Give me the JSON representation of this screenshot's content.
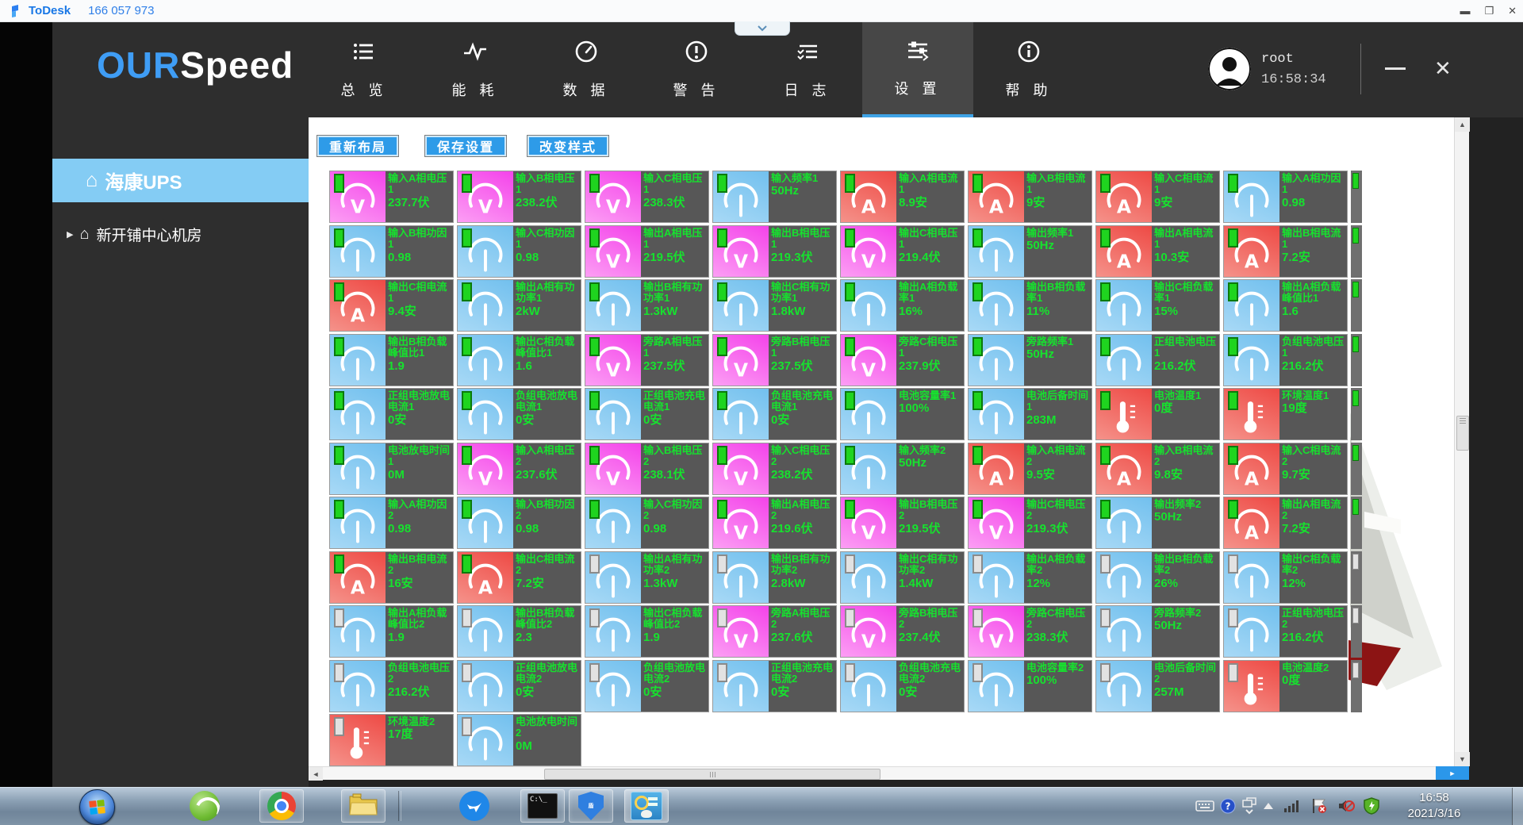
{
  "todesk": {
    "brand": "ToDesk",
    "session": "166 057 973",
    "window_controls": [
      "minimize",
      "maximize",
      "close"
    ]
  },
  "app": {
    "logo": {
      "primary": "OUR",
      "secondary": "Speed"
    },
    "nav": [
      {
        "label": "总 览",
        "icon": "overview-list"
      },
      {
        "label": "能 耗",
        "icon": "energy-pulse"
      },
      {
        "label": "数 据",
        "icon": "data-speedometer"
      },
      {
        "label": "警 告",
        "icon": "alert-warning"
      },
      {
        "label": "日 志",
        "icon": "log-lines"
      },
      {
        "label": "设 置",
        "icon": "settings-sliders",
        "active": true
      },
      {
        "label": "帮 助",
        "icon": "help-info"
      }
    ],
    "user": {
      "name": "root",
      "time": "16:58:34"
    },
    "sidebar": [
      {
        "label": "海康UPS",
        "icon": "home",
        "active": true
      },
      {
        "label": "新开铺中心机房",
        "icon": "home",
        "prefix_arrow": true,
        "active": false
      }
    ],
    "toolbar": [
      {
        "label": "重新布局"
      },
      {
        "label": "保存设置"
      },
      {
        "label": "改变样式"
      }
    ],
    "tiles": [
      {
        "label": "输入A相电压1",
        "value": "237.7伏",
        "icon": "voltmeter",
        "led": "green"
      },
      {
        "label": "输入B相电压1",
        "value": "238.2伏",
        "icon": "voltmeter",
        "led": "green"
      },
      {
        "label": "输入C相电压1",
        "value": "238.3伏",
        "icon": "voltmeter",
        "led": "green"
      },
      {
        "label": "输入频率1",
        "value": "50Hz",
        "icon": "gauge",
        "led": "green"
      },
      {
        "label": "输入A相电流1",
        "value": "8.9安",
        "icon": "ammeter",
        "led": "green"
      },
      {
        "label": "输入B相电流1",
        "value": "9安",
        "icon": "ammeter",
        "led": "green"
      },
      {
        "label": "输入C相电流1",
        "value": "9安",
        "icon": "ammeter",
        "led": "green"
      },
      {
        "label": "输入A相功因1",
        "value": "0.98",
        "icon": "gauge",
        "led": "green"
      },
      {
        "label": "输入B相功因1",
        "value": "0.98",
        "icon": "gauge",
        "led": "green"
      },
      {
        "label": "输入C相功因1",
        "value": "0.98",
        "icon": "gauge",
        "led": "green"
      },
      {
        "label": "输出A相电压1",
        "value": "219.5伏",
        "icon": "voltmeter",
        "led": "green"
      },
      {
        "label": "输出B相电压1",
        "value": "219.3伏",
        "icon": "voltmeter",
        "led": "green"
      },
      {
        "label": "输出C相电压1",
        "value": "219.4伏",
        "icon": "voltmeter",
        "led": "green"
      },
      {
        "label": "输出频率1",
        "value": "50Hz",
        "icon": "gauge",
        "led": "green"
      },
      {
        "label": "输出A相电流1",
        "value": "10.3安",
        "icon": "ammeter",
        "led": "green"
      },
      {
        "label": "输出B相电流1",
        "value": "7.2安",
        "icon": "ammeter",
        "led": "green"
      },
      {
        "label": "输出C相电流1",
        "value": "9.4安",
        "icon": "ammeter",
        "led": "green"
      },
      {
        "label": "输出A相有功功率1",
        "value": "2kW",
        "icon": "gauge",
        "led": "green"
      },
      {
        "label": "输出B相有功功率1",
        "value": "1.3kW",
        "icon": "gauge",
        "led": "green"
      },
      {
        "label": "输出C相有功功率1",
        "value": "1.8kW",
        "icon": "gauge",
        "led": "green"
      },
      {
        "label": "输出A相负载率1",
        "value": "16%",
        "icon": "gauge",
        "led": "green"
      },
      {
        "label": "输出B相负载率1",
        "value": "11%",
        "icon": "gauge",
        "led": "green"
      },
      {
        "label": "输出C相负载率1",
        "value": "15%",
        "icon": "gauge",
        "led": "green"
      },
      {
        "label": "输出A相负载峰值比1",
        "value": "1.6",
        "icon": "gauge",
        "led": "green"
      },
      {
        "label": "输出B相负载峰值比1",
        "value": "1.9",
        "icon": "gauge",
        "led": "green"
      },
      {
        "label": "输出C相负载峰值比1",
        "value": "1.6",
        "icon": "gauge",
        "led": "green"
      },
      {
        "label": "旁路A相电压1",
        "value": "237.5伏",
        "icon": "voltmeter",
        "led": "green"
      },
      {
        "label": "旁路B相电压1",
        "value": "237.5伏",
        "icon": "voltmeter",
        "led": "green"
      },
      {
        "label": "旁路C相电压1",
        "value": "237.9伏",
        "icon": "voltmeter",
        "led": "green"
      },
      {
        "label": "旁路频率1",
        "value": "50Hz",
        "icon": "gauge",
        "led": "green"
      },
      {
        "label": "正组电池电压1",
        "value": "216.2伏",
        "icon": "gauge",
        "led": "green"
      },
      {
        "label": "负组电池电压1",
        "value": "216.2伏",
        "icon": "gauge",
        "led": "green"
      },
      {
        "label": "正组电池放电电流1",
        "value": "0安",
        "icon": "gauge",
        "led": "green"
      },
      {
        "label": "负组电池放电电流1",
        "value": "0安",
        "icon": "gauge",
        "led": "green"
      },
      {
        "label": "正组电池充电电流1",
        "value": "0安",
        "icon": "gauge",
        "led": "green"
      },
      {
        "label": "负组电池充电电流1",
        "value": "0安",
        "icon": "gauge",
        "led": "green"
      },
      {
        "label": "电池容量率1",
        "value": "100%",
        "icon": "gauge",
        "led": "green"
      },
      {
        "label": "电池后备时间1",
        "value": "283M",
        "icon": "gauge",
        "led": "green"
      },
      {
        "label": "电池温度1",
        "value": "0度",
        "icon": "thermometer",
        "led": "green"
      },
      {
        "label": "环境温度1",
        "value": "19度",
        "icon": "thermometer",
        "led": "green"
      },
      {
        "label": "电池放电时间1",
        "value": "0M",
        "icon": "gauge",
        "led": "green"
      },
      {
        "label": "输入A相电压2",
        "value": "237.6伏",
        "icon": "voltmeter",
        "led": "green"
      },
      {
        "label": "输入B相电压2",
        "value": "238.1伏",
        "icon": "voltmeter",
        "led": "green"
      },
      {
        "label": "输入C相电压2",
        "value": "238.2伏",
        "icon": "voltmeter",
        "led": "green"
      },
      {
        "label": "输入频率2",
        "value": "50Hz",
        "icon": "gauge",
        "led": "green"
      },
      {
        "label": "输入A相电流2",
        "value": "9.5安",
        "icon": "ammeter",
        "led": "green"
      },
      {
        "label": "输入B相电流2",
        "value": "9.8安",
        "icon": "ammeter",
        "led": "green"
      },
      {
        "label": "输入C相电流2",
        "value": "9.7安",
        "icon": "ammeter",
        "led": "green"
      },
      {
        "label": "输入A相功因2",
        "value": "0.98",
        "icon": "gauge",
        "led": "green"
      },
      {
        "label": "输入B相功因2",
        "value": "0.98",
        "icon": "gauge",
        "led": "green"
      },
      {
        "label": "输入C相功因2",
        "value": "0.98",
        "icon": "gauge",
        "led": "green"
      },
      {
        "label": "输出A相电压2",
        "value": "219.6伏",
        "icon": "voltmeter",
        "led": "green"
      },
      {
        "label": "输出B相电压2",
        "value": "219.5伏",
        "icon": "voltmeter",
        "led": "green"
      },
      {
        "label": "输出C相电压2",
        "value": "219.3伏",
        "icon": "voltmeter",
        "led": "green"
      },
      {
        "label": "输出频率2",
        "value": "50Hz",
        "icon": "gauge",
        "led": "green"
      },
      {
        "label": "输出A相电流2",
        "value": "7.2安",
        "icon": "ammeter",
        "led": "green"
      },
      {
        "label": "输出B相电流2",
        "value": "16安",
        "icon": "ammeter",
        "led": "green"
      },
      {
        "label": "输出C相电流2",
        "value": "7.2安",
        "icon": "ammeter",
        "led": "green"
      },
      {
        "label": "输出A相有功功率2",
        "value": "1.3kW",
        "icon": "gauge",
        "led": "gray"
      },
      {
        "label": "输出B相有功功率2",
        "value": "2.8kW",
        "icon": "gauge",
        "led": "gray"
      },
      {
        "label": "输出C相有功功率2",
        "value": "1.4kW",
        "icon": "gauge",
        "led": "gray"
      },
      {
        "label": "输出A相负载率2",
        "value": "12%",
        "icon": "gauge",
        "led": "gray"
      },
      {
        "label": "输出B相负载率2",
        "value": "26%",
        "icon": "gauge",
        "led": "gray"
      },
      {
        "label": "输出C相负载率2",
        "value": "12%",
        "icon": "gauge",
        "led": "gray"
      },
      {
        "label": "输出A相负载峰值比2",
        "value": "1.9",
        "icon": "gauge",
        "led": "gray"
      },
      {
        "label": "输出B相负载峰值比2",
        "value": "2.3",
        "icon": "gauge",
        "led": "gray"
      },
      {
        "label": "输出C相负载峰值比2",
        "value": "1.9",
        "icon": "gauge",
        "led": "gray"
      },
      {
        "label": "旁路A相电压2",
        "value": "237.6伏",
        "icon": "voltmeter",
        "led": "gray"
      },
      {
        "label": "旁路B相电压2",
        "value": "237.4伏",
        "icon": "voltmeter",
        "led": "gray"
      },
      {
        "label": "旁路C相电压2",
        "value": "238.3伏",
        "icon": "voltmeter",
        "led": "gray"
      },
      {
        "label": "旁路频率2",
        "value": "50Hz",
        "icon": "gauge",
        "led": "gray"
      },
      {
        "label": "正组电池电压2",
        "value": "216.2伏",
        "icon": "gauge",
        "led": "gray"
      },
      {
        "label": "负组电池电压2",
        "value": "216.2伏",
        "icon": "gauge",
        "led": "gray"
      },
      {
        "label": "正组电池放电电流2",
        "value": "0安",
        "icon": "gauge",
        "led": "gray"
      },
      {
        "label": "负组电池放电电流2",
        "value": "0安",
        "icon": "gauge",
        "led": "gray"
      },
      {
        "label": "正组电池充电电流2",
        "value": "0安",
        "icon": "gauge",
        "led": "gray"
      },
      {
        "label": "负组电池充电电流2",
        "value": "0安",
        "icon": "gauge",
        "led": "gray"
      },
      {
        "label": "电池容量率2",
        "value": "100%",
        "icon": "gauge",
        "led": "gray"
      },
      {
        "label": "电池后备时间2",
        "value": "257M",
        "icon": "gauge",
        "led": "gray"
      },
      {
        "label": "电池温度2",
        "value": "0度",
        "icon": "thermometer",
        "led": "gray"
      },
      {
        "label": "环境温度2",
        "value": "17度",
        "icon": "thermometer",
        "led": "gray"
      },
      {
        "label": "电池放电时间2",
        "value": "0M",
        "icon": "gauge",
        "led": "gray"
      }
    ],
    "tile_colors": {
      "voltmeter": "#f443ea",
      "ammeter": "#ee4a45",
      "gauge": "#72c0ee",
      "thermometer": "#ee4a45",
      "text_green": "#16e22e",
      "panel_gray": "#575757"
    }
  },
  "taskbar": {
    "apps": [
      {
        "name": "start"
      },
      {
        "name": "browser-360"
      },
      {
        "name": "chrome",
        "framed": true
      },
      {
        "name": "file-explorer",
        "framed": true
      },
      {
        "name": "dingtalk"
      },
      {
        "name": "command-prompt",
        "framed": true,
        "cmd_text": "C:\\_"
      },
      {
        "name": "security-client",
        "framed": true
      },
      {
        "name": "monitor-client",
        "framed": true,
        "active": true
      }
    ],
    "tray": [
      {
        "name": "keyboard"
      },
      {
        "name": "help"
      },
      {
        "name": "session-windows"
      },
      {
        "name": "show-hidden-icons"
      },
      {
        "name": "network-signal"
      },
      {
        "name": "action-center-flag"
      },
      {
        "name": "volume-muted"
      },
      {
        "name": "antivirus-shield"
      }
    ],
    "clock": {
      "time": "16:58",
      "date": "2021/3/16"
    }
  }
}
